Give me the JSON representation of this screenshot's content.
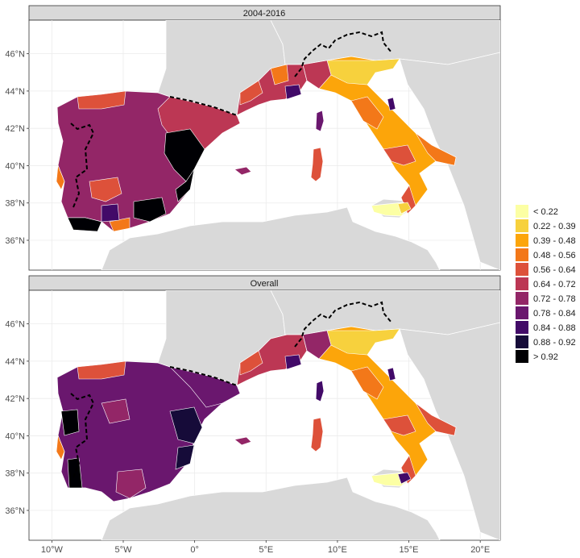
{
  "panels": [
    {
      "strip": "2004-2016"
    },
    {
      "strip": "Overall"
    }
  ],
  "axes": {
    "y_ticks": [
      "36°N",
      "38°N",
      "40°N",
      "42°N",
      "44°N",
      "46°N"
    ],
    "y_values": [
      36,
      38,
      40,
      42,
      44,
      46
    ],
    "x_ticks": [
      "10°W",
      "5°W",
      "0°",
      "5°E",
      "10°E",
      "15°E",
      "20°E"
    ],
    "x_values": [
      -10,
      -5,
      0,
      5,
      10,
      15,
      20
    ],
    "lon_range": [
      -11.6,
      21.4
    ],
    "lat_range": [
      34.4,
      47.8
    ]
  },
  "legend": {
    "labels": [
      "< 0.22",
      "0.22 - 0.39",
      "0.39 - 0.48",
      "0.48 - 0.56",
      "0.56 - 0.64",
      "0.64 - 0.72",
      "0.72 - 0.78",
      "0.78 - 0.84",
      "0.84 - 0.88",
      "0.88 - 0.92",
      "> 0.92"
    ],
    "colors": [
      "#FCFFA4",
      "#F7D13D",
      "#FCA50A",
      "#F37819",
      "#DD513A",
      "#BC3754",
      "#932667",
      "#6A176E",
      "#420A68",
      "#160B39",
      "#000004"
    ]
  },
  "colors": {
    "land": "#d9d9d9",
    "sea": "#ffffff",
    "panel_border": "#333333",
    "strip_fill": "#d9d9d9",
    "border_line": "#000000"
  }
}
